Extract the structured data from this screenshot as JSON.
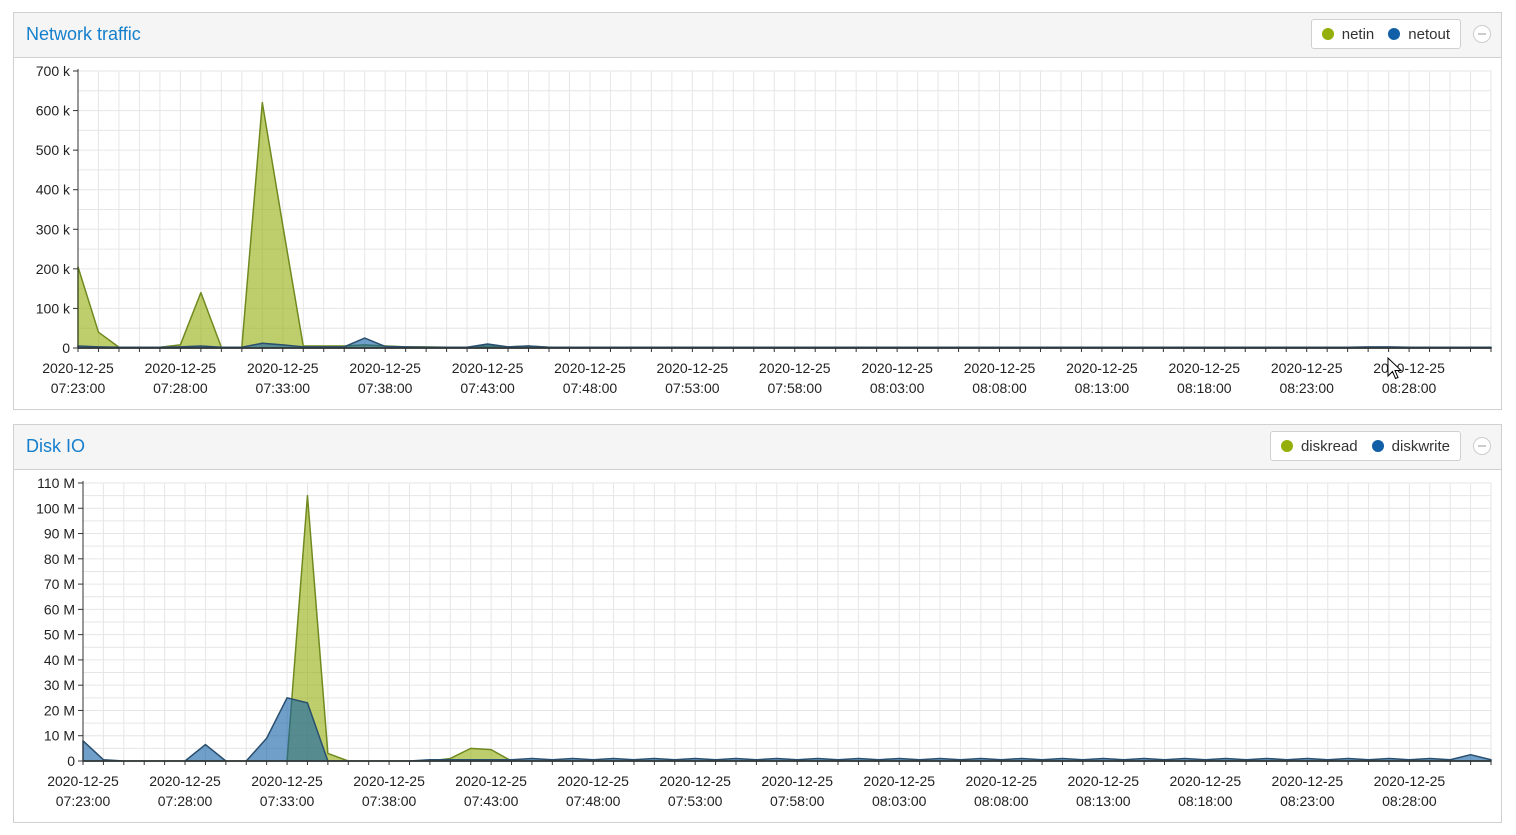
{
  "colors": {
    "green": "#94ae0a",
    "blue": "#115fa6",
    "title": "#157fcc"
  },
  "charts": [
    {
      "title": "Network traffic",
      "legend": [
        {
          "label": "netin",
          "color": "#94ae0a"
        },
        {
          "label": "netout",
          "color": "#115fa6"
        }
      ],
      "chart_data": {
        "type": "area",
        "title": "Network traffic",
        "x": [
          "2020-12-25 07:23:00",
          "2020-12-25 07:24:00",
          "2020-12-25 07:25:00",
          "2020-12-25 07:26:00",
          "2020-12-25 07:27:00",
          "2020-12-25 07:28:00",
          "2020-12-25 07:29:00",
          "2020-12-25 07:30:00",
          "2020-12-25 07:31:00",
          "2020-12-25 07:32:00",
          "2020-12-25 07:33:00",
          "2020-12-25 07:34:00",
          "2020-12-25 07:35:00",
          "2020-12-25 07:36:00",
          "2020-12-25 07:37:00",
          "2020-12-25 07:38:00",
          "2020-12-25 07:39:00",
          "2020-12-25 07:40:00",
          "2020-12-25 07:41:00",
          "2020-12-25 07:42:00",
          "2020-12-25 07:43:00",
          "2020-12-25 07:44:00",
          "2020-12-25 07:45:00",
          "2020-12-25 07:46:00",
          "2020-12-25 07:47:00",
          "2020-12-25 07:48:00",
          "2020-12-25 07:49:00",
          "2020-12-25 07:50:00",
          "2020-12-25 07:51:00",
          "2020-12-25 07:52:00",
          "2020-12-25 07:53:00",
          "2020-12-25 07:54:00",
          "2020-12-25 07:55:00",
          "2020-12-25 07:56:00",
          "2020-12-25 07:57:00",
          "2020-12-25 07:58:00",
          "2020-12-25 07:59:00",
          "2020-12-25 08:00:00",
          "2020-12-25 08:01:00",
          "2020-12-25 08:02:00",
          "2020-12-25 08:03:00",
          "2020-12-25 08:04:00",
          "2020-12-25 08:05:00",
          "2020-12-25 08:06:00",
          "2020-12-25 08:07:00",
          "2020-12-25 08:08:00",
          "2020-12-25 08:09:00",
          "2020-12-25 08:10:00",
          "2020-12-25 08:11:00",
          "2020-12-25 08:12:00",
          "2020-12-25 08:13:00",
          "2020-12-25 08:14:00",
          "2020-12-25 08:15:00",
          "2020-12-25 08:16:00",
          "2020-12-25 08:17:00",
          "2020-12-25 08:18:00",
          "2020-12-25 08:19:00",
          "2020-12-25 08:20:00",
          "2020-12-25 08:21:00",
          "2020-12-25 08:22:00",
          "2020-12-25 08:23:00",
          "2020-12-25 08:24:00",
          "2020-12-25 08:25:00",
          "2020-12-25 08:26:00",
          "2020-12-25 08:27:00",
          "2020-12-25 08:28:00",
          "2020-12-25 08:29:00",
          "2020-12-25 08:30:00",
          "2020-12-25 08:31:00",
          "2020-12-25 08:32:00"
        ],
        "series": [
          {
            "name": "netin",
            "color": "#94ae0a",
            "values": [
              205000,
              40000,
              2000,
              2000,
              2000,
              8000,
              140000,
              2000,
              2000,
              620000,
              310000,
              5000,
              5000,
              5000,
              8000,
              5000,
              3000,
              3000,
              2000,
              2000,
              5000,
              3000,
              5000,
              2000,
              2000,
              2000,
              2000,
              2000,
              2000,
              2000,
              2000,
              2000,
              2000,
              2000,
              2000,
              2000,
              2000,
              2000,
              2000,
              2000,
              2000,
              2000,
              2000,
              2000,
              2000,
              2000,
              2000,
              2000,
              2000,
              2000,
              2000,
              2000,
              2000,
              2000,
              2000,
              2000,
              2000,
              2000,
              2000,
              2000,
              2000,
              2000,
              2000,
              2000,
              2000,
              2000,
              2000,
              2000,
              2000,
              2000
            ]
          },
          {
            "name": "netout",
            "color": "#115fa6",
            "values": [
              5000,
              3000,
              2000,
              2000,
              2000,
              3000,
              5000,
              2000,
              2000,
              12000,
              8000,
              3000,
              3000,
              3000,
              25000,
              4000,
              3000,
              2000,
              2000,
              2000,
              10000,
              3000,
              5000,
              2000,
              2000,
              2000,
              2000,
              2000,
              2000,
              2000,
              2000,
              2000,
              2000,
              2000,
              2000,
              2000,
              2000,
              2000,
              2000,
              2000,
              2000,
              2000,
              2000,
              2000,
              2000,
              2000,
              2000,
              2000,
              2000,
              2000,
              2000,
              2000,
              2000,
              2000,
              2000,
              2000,
              2000,
              2000,
              2000,
              2000,
              2000,
              2000,
              2000,
              3000,
              3000,
              2000,
              2000,
              2000,
              2000,
              2000
            ]
          }
        ],
        "y_ticks": [
          "0",
          "100 k",
          "200 k",
          "300 k",
          "400 k",
          "500 k",
          "600 k",
          "700 k"
        ],
        "ylim": [
          0,
          700000
        ],
        "x_tick_labels": [
          [
            "2020-12-25",
            "07:23:00"
          ],
          [
            "2020-12-25",
            "07:28:00"
          ],
          [
            "2020-12-25",
            "07:33:00"
          ],
          [
            "2020-12-25",
            "07:38:00"
          ],
          [
            "2020-12-25",
            "07:43:00"
          ],
          [
            "2020-12-25",
            "07:48:00"
          ],
          [
            "2020-12-25",
            "07:53:00"
          ],
          [
            "2020-12-25",
            "07:58:00"
          ],
          [
            "2020-12-25",
            "08:03:00"
          ],
          [
            "2020-12-25",
            "08:08:00"
          ],
          [
            "2020-12-25",
            "08:13:00"
          ],
          [
            "2020-12-25",
            "08:18:00"
          ],
          [
            "2020-12-25",
            "08:23:00"
          ],
          [
            "2020-12-25",
            "08:28:00"
          ]
        ],
        "grid": true,
        "legend_position": "top-right"
      }
    },
    {
      "title": "Disk IO",
      "legend": [
        {
          "label": "diskread",
          "color": "#94ae0a"
        },
        {
          "label": "diskwrite",
          "color": "#115fa6"
        }
      ],
      "chart_data": {
        "type": "area",
        "title": "Disk IO",
        "x": [
          "2020-12-25 07:23:00",
          "2020-12-25 07:24:00",
          "2020-12-25 07:25:00",
          "2020-12-25 07:26:00",
          "2020-12-25 07:27:00",
          "2020-12-25 07:28:00",
          "2020-12-25 07:29:00",
          "2020-12-25 07:30:00",
          "2020-12-25 07:31:00",
          "2020-12-25 07:32:00",
          "2020-12-25 07:33:00",
          "2020-12-25 07:34:00",
          "2020-12-25 07:35:00",
          "2020-12-25 07:36:00",
          "2020-12-25 07:37:00",
          "2020-12-25 07:38:00",
          "2020-12-25 07:39:00",
          "2020-12-25 07:40:00",
          "2020-12-25 07:41:00",
          "2020-12-25 07:42:00",
          "2020-12-25 07:43:00",
          "2020-12-25 07:44:00",
          "2020-12-25 07:45:00",
          "2020-12-25 07:46:00",
          "2020-12-25 07:47:00",
          "2020-12-25 07:48:00",
          "2020-12-25 07:49:00",
          "2020-12-25 07:50:00",
          "2020-12-25 07:51:00",
          "2020-12-25 07:52:00",
          "2020-12-25 07:53:00",
          "2020-12-25 07:54:00",
          "2020-12-25 07:55:00",
          "2020-12-25 07:56:00",
          "2020-12-25 07:57:00",
          "2020-12-25 07:58:00",
          "2020-12-25 07:59:00",
          "2020-12-25 08:00:00",
          "2020-12-25 08:01:00",
          "2020-12-25 08:02:00",
          "2020-12-25 08:03:00",
          "2020-12-25 08:04:00",
          "2020-12-25 08:05:00",
          "2020-12-25 08:06:00",
          "2020-12-25 08:07:00",
          "2020-12-25 08:08:00",
          "2020-12-25 08:09:00",
          "2020-12-25 08:10:00",
          "2020-12-25 08:11:00",
          "2020-12-25 08:12:00",
          "2020-12-25 08:13:00",
          "2020-12-25 08:14:00",
          "2020-12-25 08:15:00",
          "2020-12-25 08:16:00",
          "2020-12-25 08:17:00",
          "2020-12-25 08:18:00",
          "2020-12-25 08:19:00",
          "2020-12-25 08:20:00",
          "2020-12-25 08:21:00",
          "2020-12-25 08:22:00",
          "2020-12-25 08:23:00",
          "2020-12-25 08:24:00",
          "2020-12-25 08:25:00",
          "2020-12-25 08:26:00",
          "2020-12-25 08:27:00",
          "2020-12-25 08:28:00",
          "2020-12-25 08:29:00",
          "2020-12-25 08:30:00",
          "2020-12-25 08:31:00",
          "2020-12-25 08:32:00"
        ],
        "series": [
          {
            "name": "diskread",
            "color": "#94ae0a",
            "values": [
              0,
              0,
              0,
              0,
              0,
              0,
              0,
              0,
              0,
              0,
              0,
              105000000,
              3000000,
              0,
              0,
              0,
              0,
              0,
              1000000,
              5000000,
              4500000,
              0,
              0,
              0,
              0,
              0,
              0,
              0,
              0,
              0,
              0,
              0,
              0,
              0,
              0,
              0,
              0,
              0,
              0,
              0,
              0,
              0,
              0,
              0,
              0,
              0,
              0,
              0,
              0,
              0,
              0,
              0,
              0,
              0,
              0,
              0,
              0,
              0,
              0,
              0,
              0,
              0,
              0,
              0,
              0,
              0,
              0,
              0,
              0,
              0
            ]
          },
          {
            "name": "diskwrite",
            "color": "#115fa6",
            "values": [
              8000000,
              500000,
              0,
              0,
              0,
              0,
              6500000,
              0,
              0,
              9000000,
              25000000,
              23000000,
              0,
              0,
              0,
              0,
              0,
              500000,
              500000,
              500000,
              500000,
              500000,
              1000000,
              500000,
              1000000,
              500000,
              1000000,
              500000,
              1000000,
              500000,
              1000000,
              500000,
              1000000,
              500000,
              1000000,
              500000,
              1000000,
              500000,
              1000000,
              500000,
              1000000,
              500000,
              1000000,
              500000,
              1000000,
              500000,
              1000000,
              500000,
              1000000,
              500000,
              1000000,
              500000,
              1000000,
              500000,
              1000000,
              500000,
              1000000,
              500000,
              1000000,
              500000,
              1000000,
              500000,
              1000000,
              500000,
              1000000,
              500000,
              1000000,
              500000,
              2500000,
              500000
            ]
          }
        ],
        "y_ticks": [
          "0",
          "10 M",
          "20 M",
          "30 M",
          "40 M",
          "50 M",
          "60 M",
          "70 M",
          "80 M",
          "90 M",
          "100 M",
          "110 M"
        ],
        "ylim": [
          0,
          110000000
        ],
        "x_tick_labels": [
          [
            "2020-12-25",
            "07:23:00"
          ],
          [
            "2020-12-25",
            "07:28:00"
          ],
          [
            "2020-12-25",
            "07:33:00"
          ],
          [
            "2020-12-25",
            "07:38:00"
          ],
          [
            "2020-12-25",
            "07:43:00"
          ],
          [
            "2020-12-25",
            "07:48:00"
          ],
          [
            "2020-12-25",
            "07:53:00"
          ],
          [
            "2020-12-25",
            "07:58:00"
          ],
          [
            "2020-12-25",
            "08:03:00"
          ],
          [
            "2020-12-25",
            "08:08:00"
          ],
          [
            "2020-12-25",
            "08:13:00"
          ],
          [
            "2020-12-25",
            "08:18:00"
          ],
          [
            "2020-12-25",
            "08:23:00"
          ],
          [
            "2020-12-25",
            "08:28:00"
          ]
        ],
        "grid": true,
        "legend_position": "top-right"
      }
    }
  ]
}
